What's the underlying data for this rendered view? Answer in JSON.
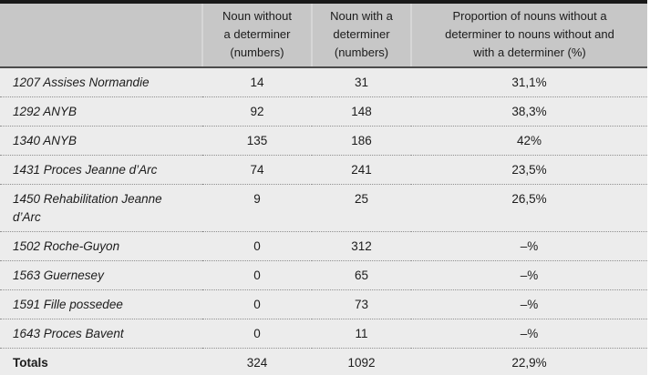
{
  "table": {
    "columns": [
      {
        "label": ""
      },
      {
        "label": "Noun without\na determiner\n(numbers)"
      },
      {
        "label": "Noun with a\ndeterminer\n(numbers)"
      },
      {
        "label": "Proportion of nouns without a\ndeterminer to nouns without and\nwith a determiner (%)"
      }
    ],
    "rows": [
      {
        "label": "1207 Assises Normandie",
        "noun_without": 14,
        "noun_with": 31,
        "proportion": "31,1%"
      },
      {
        "label": "1292 ANYB",
        "noun_without": 92,
        "noun_with": 148,
        "proportion": "38,3%"
      },
      {
        "label": "1340 ANYB",
        "noun_without": 135,
        "noun_with": 186,
        "proportion": "42%"
      },
      {
        "label": "1431 Proces Jeanne d’Arc",
        "noun_without": 74,
        "noun_with": 241,
        "proportion": "23,5%"
      },
      {
        "label": "1450 Rehabilitation Jeanne\nd’Arc",
        "noun_without": 9,
        "noun_with": 25,
        "proportion": "26,5%"
      },
      {
        "label": "1502 Roche-Guyon",
        "noun_without": 0,
        "noun_with": 312,
        "proportion": "–%"
      },
      {
        "label": "1563 Guernesey",
        "noun_without": 0,
        "noun_with": 65,
        "proportion": "–%"
      },
      {
        "label": "1591 Fille possedee",
        "noun_without": 0,
        "noun_with": 73,
        "proportion": "–%"
      },
      {
        "label": "1643 Proces Bavent",
        "noun_without": 0,
        "noun_with": 11,
        "proportion": "–%"
      }
    ],
    "totals": {
      "label": "Totals",
      "noun_without": 324,
      "noun_with": 1092,
      "proportion": "22,9%"
    }
  },
  "colors": {
    "header_background": "#c7c7c7",
    "body_background": "#ececec",
    "top_rule": "#191919",
    "bottom_rule": "#383838",
    "header_rule": "#4c4c4c",
    "dotted_separator": "#8f8f8f",
    "text": "#1c1c1c"
  }
}
